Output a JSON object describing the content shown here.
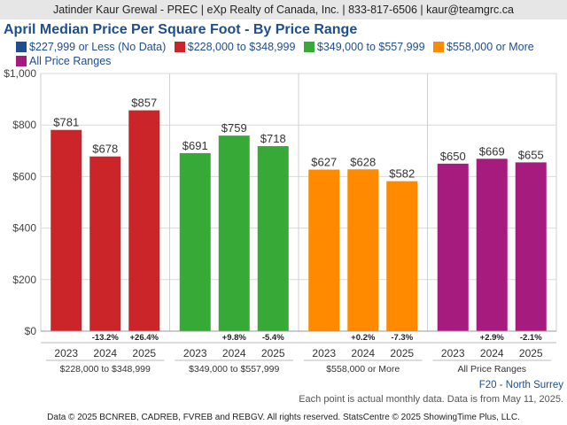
{
  "header": {
    "text": "Jatinder Kaur Grewal - PREC | eXp Realty of Canada, Inc. | 833-817-6506 | kaur@teamgrc.ca"
  },
  "notes": {
    "region": "F20 - North Surrey",
    "data_note": "Each point is actual monthly data. Data is from May 11, 2025."
  },
  "footer": {
    "text": "Data © 2025 BCNREB, CADREB, FVREB and REBGV. All rights reserved. StatsCentre © 2025 ShowingTime Plus, LLC."
  },
  "chart_data": {
    "type": "bar",
    "title": "April Median Price Per Square Foot - By Price Range",
    "legend": [
      {
        "name": "$227,999 or Less (No Data)",
        "color": "#1f4e8c"
      },
      {
        "name": "$228,000 to $348,999",
        "color": "#cc2529"
      },
      {
        "name": "$349,000 to $557,999",
        "color": "#36a936"
      },
      {
        "name": "$558,000 or More",
        "color": "#ff8a00"
      },
      {
        "name": "All Price Ranges",
        "color": "#a51b7e"
      }
    ],
    "ylim": [
      0,
      1000
    ],
    "yticks": [
      "$0",
      "$200",
      "$400",
      "$600",
      "$800",
      "$1,000"
    ],
    "grid": true,
    "groups": [
      {
        "name": "$228,000 to $348,999",
        "color": "#cc2529",
        "bars": [
          {
            "year": "2023",
            "value": 781,
            "label": "$781",
            "change": ""
          },
          {
            "year": "2024",
            "value": 678,
            "label": "$678",
            "change": "-13.2%"
          },
          {
            "year": "2025",
            "value": 857,
            "label": "$857",
            "change": "+26.4%"
          }
        ]
      },
      {
        "name": "$349,000 to $557,999",
        "color": "#36a936",
        "bars": [
          {
            "year": "2023",
            "value": 691,
            "label": "$691",
            "change": ""
          },
          {
            "year": "2024",
            "value": 759,
            "label": "$759",
            "change": "+9.8%"
          },
          {
            "year": "2025",
            "value": 718,
            "label": "$718",
            "change": "-5.4%"
          }
        ]
      },
      {
        "name": "$558,000 or More",
        "color": "#ff8a00",
        "bars": [
          {
            "year": "2023",
            "value": 627,
            "label": "$627",
            "change": ""
          },
          {
            "year": "2024",
            "value": 628,
            "label": "$628",
            "change": "+0.2%"
          },
          {
            "year": "2025",
            "value": 582,
            "label": "$582",
            "change": "-7.3%"
          }
        ]
      },
      {
        "name": "All Price Ranges",
        "color": "#a51b7e",
        "bars": [
          {
            "year": "2023",
            "value": 650,
            "label": "$650",
            "change": ""
          },
          {
            "year": "2024",
            "value": 669,
            "label": "$669",
            "change": "+2.9%"
          },
          {
            "year": "2025",
            "value": 655,
            "label": "$655",
            "change": "-2.1%"
          }
        ]
      }
    ]
  }
}
